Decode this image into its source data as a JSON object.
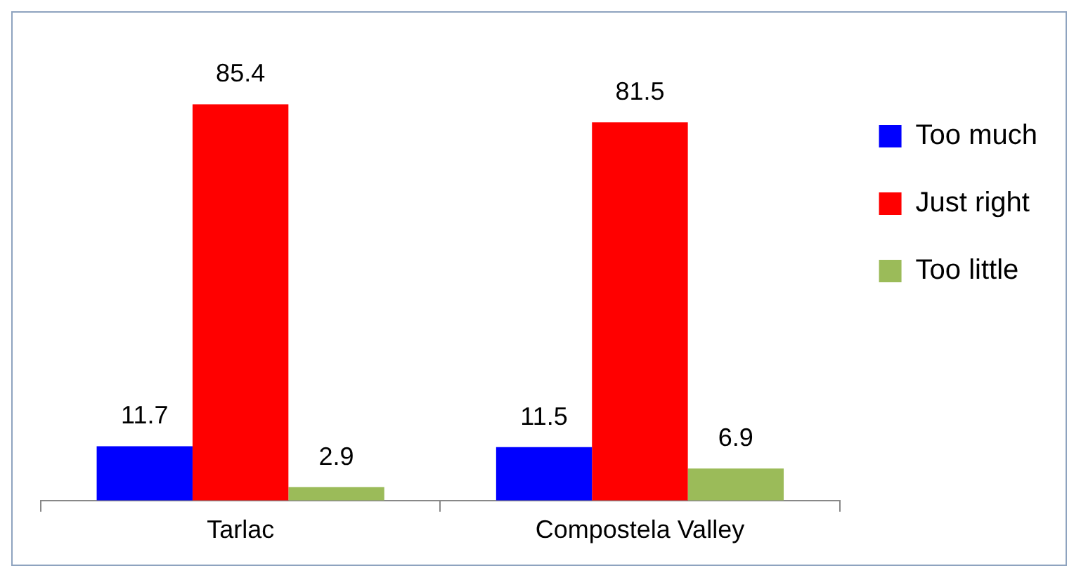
{
  "chart_data": {
    "type": "bar",
    "categories": [
      "Tarlac",
      "Compostela Valley"
    ],
    "series": [
      {
        "name": "Too much",
        "color": "#0000ff",
        "values": [
          11.7,
          11.5
        ]
      },
      {
        "name": "Just right",
        "color": "#ff0000",
        "values": [
          85.4,
          81.5
        ]
      },
      {
        "name": "Too little",
        "color": "#9bbb59",
        "values": [
          2.9,
          6.9
        ]
      }
    ],
    "data_labels": true,
    "legend": "right",
    "grid": false
  }
}
